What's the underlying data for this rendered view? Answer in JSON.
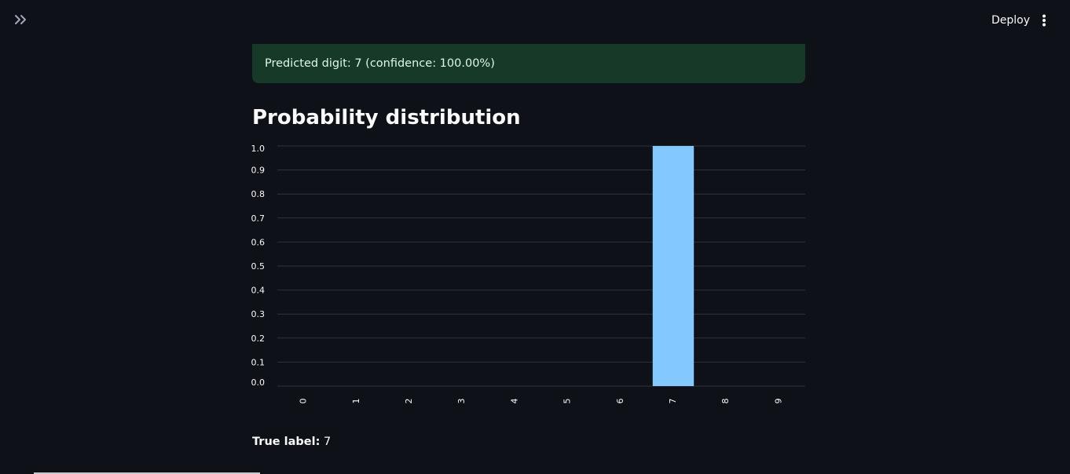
{
  "header": {
    "sidebar_toggle_icon": "double-chevron-right-icon",
    "deploy_label": "Deploy",
    "menu_icon": "vertical-ellipsis-icon"
  },
  "alert": {
    "text": "Predicted digit: 7 (confidence: 100.00%)",
    "color": "#173928"
  },
  "section": {
    "title": "Probability distribution"
  },
  "chart_data": {
    "type": "bar",
    "categories": [
      "0",
      "1",
      "2",
      "3",
      "4",
      "5",
      "6",
      "7",
      "8",
      "9"
    ],
    "values": [
      0,
      0,
      0,
      0,
      0,
      0,
      0,
      1.0,
      0,
      0
    ],
    "ylim": [
      0,
      1.0
    ],
    "yticks": [
      "0.0",
      "0.1",
      "0.2",
      "0.3",
      "0.4",
      "0.5",
      "0.6",
      "0.7",
      "0.8",
      "0.9",
      "1.0"
    ],
    "grid": true,
    "bar_color": "#83c9ff",
    "title": "",
    "xlabel": "",
    "ylabel": ""
  },
  "result": {
    "label": "True label:",
    "value": "7"
  }
}
